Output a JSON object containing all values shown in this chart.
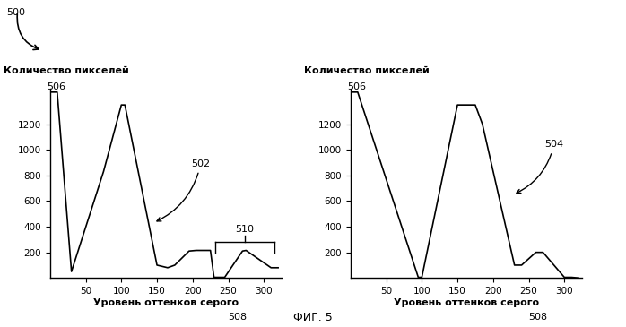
{
  "fig_label": "500",
  "fig5_label": "ФИГ. 5",
  "ylabel": "Количество пикселей",
  "xlabel": "Уровень оттенков серого",
  "left_chart": {
    "label_506": "506",
    "label_502": "502",
    "label_510": "510",
    "label_508": "508",
    "x": [
      0,
      10,
      30,
      75,
      100,
      105,
      150,
      165,
      175,
      195,
      205,
      225,
      230,
      245,
      270,
      275,
      310,
      320
    ],
    "y": [
      1450,
      1450,
      50,
      830,
      1350,
      1350,
      100,
      80,
      100,
      210,
      215,
      215,
      5,
      5,
      210,
      215,
      80,
      80
    ],
    "yticks": [
      200,
      400,
      600,
      800,
      1000,
      1200
    ],
    "xticks": [
      50,
      100,
      150,
      200,
      250,
      300
    ],
    "xlim": [
      0,
      325
    ],
    "ylim": [
      0,
      1480
    ]
  },
  "right_chart": {
    "label_506": "506",
    "label_504": "504",
    "label_508": "508",
    "x": [
      0,
      10,
      95,
      100,
      150,
      175,
      185,
      230,
      240,
      260,
      270,
      300,
      310,
      320
    ],
    "y": [
      1450,
      1450,
      5,
      5,
      1350,
      1350,
      1200,
      100,
      100,
      200,
      200,
      5,
      5,
      0
    ],
    "yticks": [
      200,
      400,
      600,
      800,
      1000,
      1200
    ],
    "xticks": [
      50,
      100,
      150,
      200,
      250,
      300
    ],
    "xlim": [
      0,
      325
    ],
    "ylim": [
      0,
      1480
    ]
  },
  "line_color": "#000000",
  "bg_color": "#ffffff",
  "font_size": 8,
  "tick_font_size": 7.5
}
